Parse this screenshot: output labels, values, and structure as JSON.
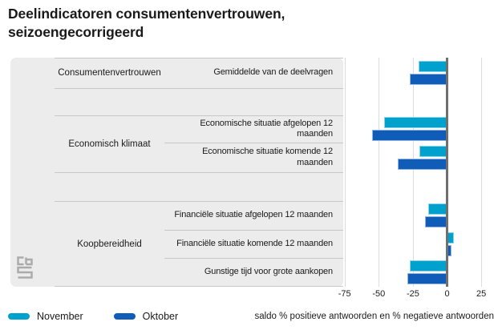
{
  "title": "Deelindicatoren consumentenvertrouwen, seizoengecorrigeerd",
  "logo": "cbs",
  "chart_data": {
    "type": "bar",
    "orientation": "horizontal",
    "title": "Deelindicatoren consumentenvertrouwen, seizoengecorrigeerd",
    "groups": [
      "Consumentenvertrouwen",
      "Economisch klimaat",
      "Koopbereidheid"
    ],
    "rows": [
      {
        "group": "Consumentenvertrouwen",
        "label": "Gemiddelde van de deelvragen",
        "november": -21,
        "oktober": -27
      },
      {
        "group": "Economisch klimaat",
        "label": "Economische situatie afgelopen 12 maanden",
        "november": -46,
        "oktober": -55
      },
      {
        "group": "Economisch klimaat",
        "label": "Economische situatie komende 12 maanden",
        "november": -20,
        "oktober": -36
      },
      {
        "group": "Koopbereidheid",
        "label": "Financiële situatie afgelopen 12 maanden",
        "november": -14,
        "oktober": -16
      },
      {
        "group": "Koopbereidheid",
        "label": "Financiële situatie komende 12 maanden",
        "november": 5,
        "oktober": 3
      },
      {
        "group": "Koopbereidheid",
        "label": "Gunstige tijd voor grote aankopen",
        "november": -27,
        "oktober": -29
      }
    ],
    "series": [
      {
        "name": "November",
        "color": "#00a1cd"
      },
      {
        "name": "Oktober",
        "color": "#0f5db8"
      }
    ],
    "x_ticks": [
      -75,
      -50,
      -25,
      0,
      25
    ],
    "axis_range": [
      -76,
      35.5
    ],
    "grid": true,
    "legend_position": "bottom-left",
    "xlabel": "saldo % positieve antwoorden en % negatieve antwoorden"
  }
}
